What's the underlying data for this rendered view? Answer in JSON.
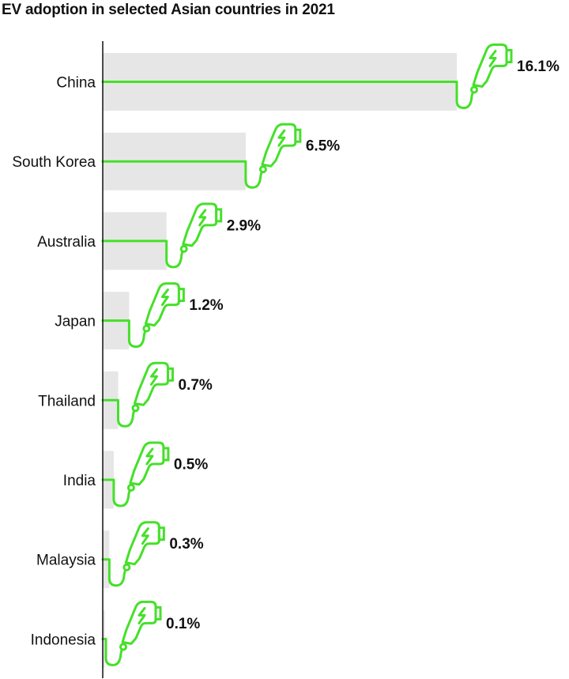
{
  "chart_data": {
    "type": "bar",
    "orientation": "horizontal",
    "title": "EV adoption in selected Asian countries in 2021",
    "categories": [
      "China",
      "South Korea",
      "Australia",
      "Japan",
      "Thailand",
      "India",
      "Malaysia",
      "Indonesia"
    ],
    "values": [
      16.1,
      6.5,
      2.9,
      1.2,
      0.7,
      0.5,
      0.3,
      0.1
    ],
    "value_labels": [
      "16.1%",
      "6.5%",
      "2.9%",
      "1.2%",
      "0.7%",
      "0.5%",
      "0.3%",
      "0.1%"
    ],
    "unit": "%",
    "xlim": [
      0,
      16.1
    ],
    "grid": false,
    "colors": {
      "bar": "#e6e6e6",
      "accent": "#45e02a",
      "axis": "#111111",
      "text": "#111111"
    },
    "marker_icon": "ev-charger-plug-icon"
  }
}
